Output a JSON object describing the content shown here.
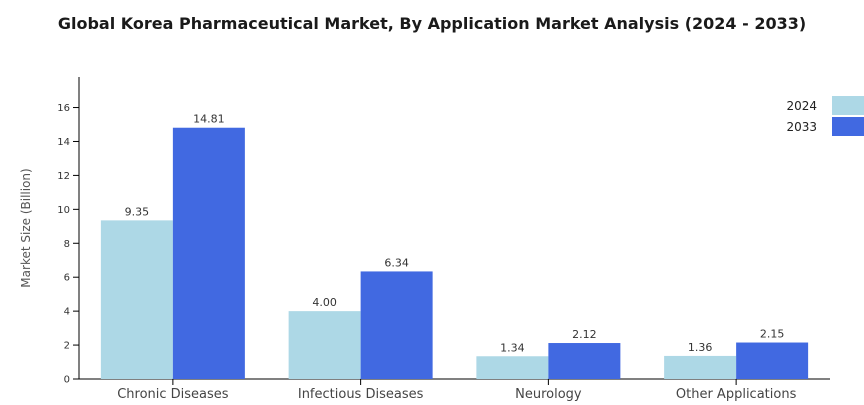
{
  "chart_data": {
    "type": "bar",
    "title": "Global Korea Pharmaceutical Market, By Application Market Analysis (2024 - 2033)",
    "xlabel": "",
    "ylabel": "Market Size (Billion)",
    "categories": [
      "Chronic Diseases",
      "Infectious Diseases",
      "Neurology",
      "Other Applications"
    ],
    "series": [
      {
        "name": "2024",
        "values": [
          9.35,
          4.0,
          1.34,
          1.36
        ],
        "labels": [
          "9.35",
          "4.00",
          "1.34",
          "1.36"
        ],
        "color": "#add8e6"
      },
      {
        "name": "2033",
        "values": [
          14.81,
          6.34,
          2.12,
          2.15
        ],
        "labels": [
          "14.81",
          "6.34",
          "2.12",
          "2.15"
        ],
        "color": "#4169e1"
      }
    ],
    "ylim": [
      0,
      17.8
    ],
    "yticks": [
      0,
      2,
      4,
      6,
      8,
      10,
      12,
      14,
      16
    ],
    "grid": false,
    "legend_position": "top-right"
  }
}
